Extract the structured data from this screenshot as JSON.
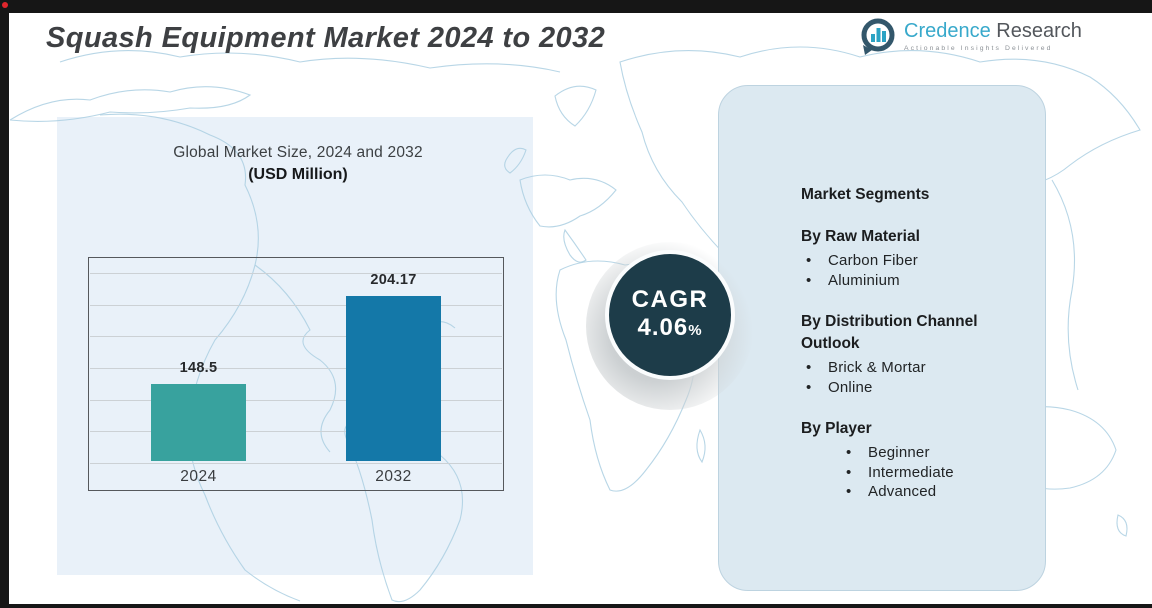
{
  "header": {
    "title": "Squash Equipment Market 2024 to 2032",
    "logo": {
      "name_part1": "Credence",
      "name_part2": " Research",
      "tagline": "Actionable Insights Delivered"
    }
  },
  "chart_data": {
    "type": "bar",
    "title": "Global Market Size, 2024 and 2032",
    "subtitle": "(USD Million)",
    "categories": [
      "2024",
      "2032"
    ],
    "values": [
      148.5,
      204.17
    ],
    "bar_colors": [
      "#38a29e",
      "#1478a8"
    ],
    "ylim": [
      100,
      220
    ],
    "gridline_count": 7,
    "grid": true,
    "legend": "none"
  },
  "cagr": {
    "label": "CAGR",
    "value": "4.06",
    "percent_sign": "%",
    "circle_color": "#1d3c49"
  },
  "segments_panel": {
    "title": "Market Segments",
    "groups": [
      {
        "heading": "By Raw Material",
        "items": [
          "Carbon Fiber",
          "Aluminium"
        ]
      },
      {
        "heading": "By Distribution Channel Outlook",
        "items": [
          "Brick & Mortar",
          "Online"
        ]
      },
      {
        "heading": "By Player",
        "items": [
          "Beginner",
          "Intermediate",
          "Advanced"
        ]
      }
    ]
  },
  "colors": {
    "frame_bar": "#161616",
    "red_dot": "#e0262c",
    "map_background": "#e9f1f9",
    "map_line": "#abcfe2",
    "panel_background": "#dce9f1",
    "logo_accent": "#38a9cb"
  }
}
